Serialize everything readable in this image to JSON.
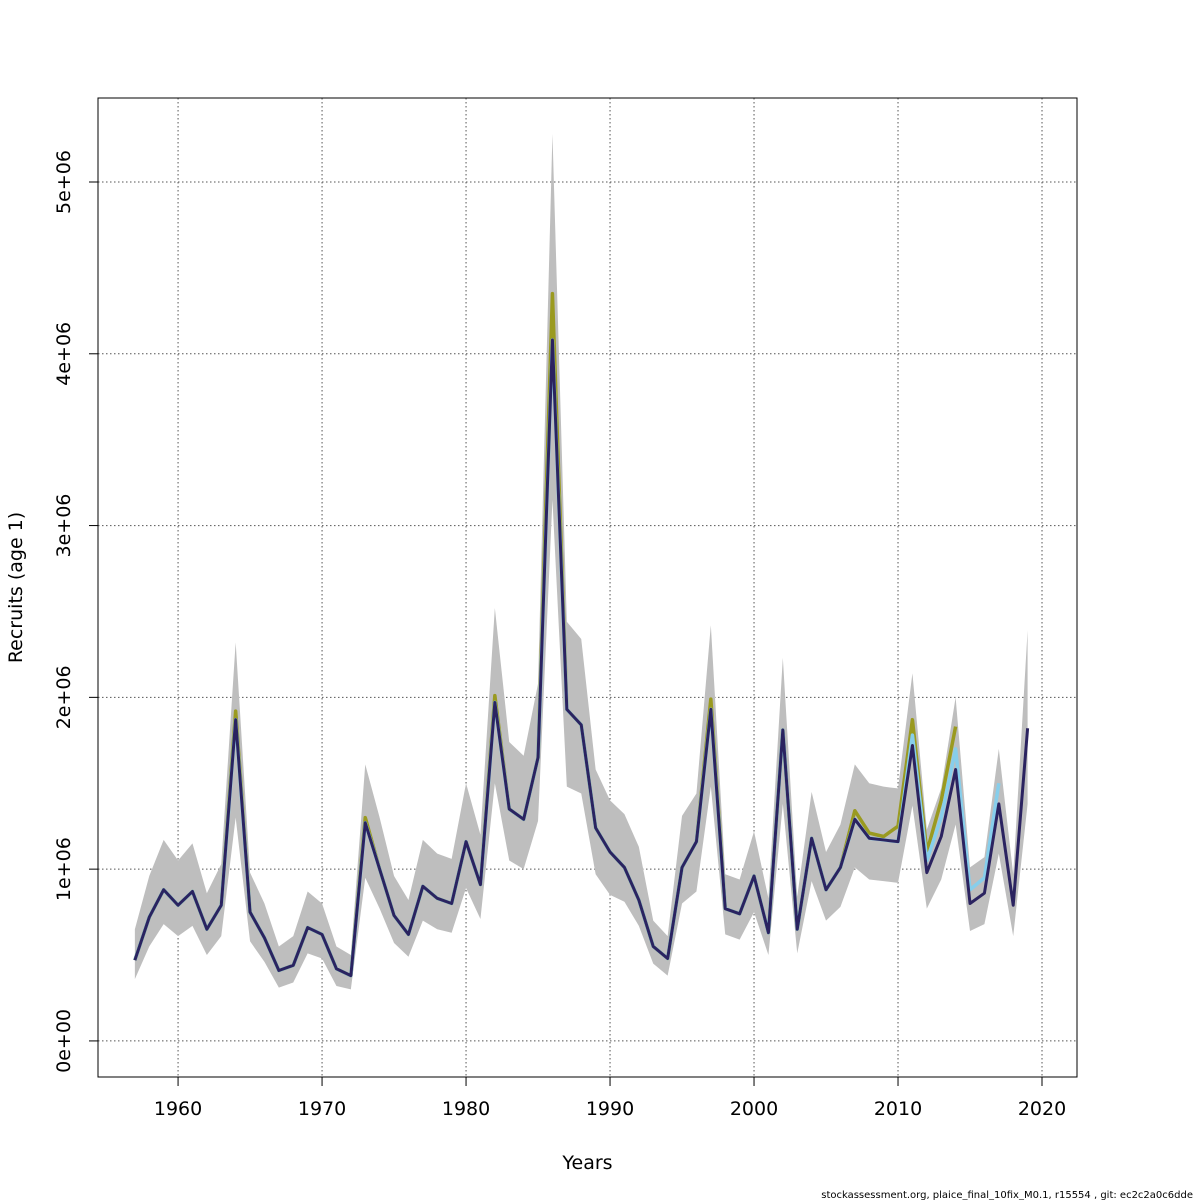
{
  "chart_data": {
    "type": "line",
    "xlabel": "Years",
    "ylabel": "Recruits (age 1)",
    "footer": "stockassessment.org, plaice_final_10fix_M0.1, r15554 , git: ec2c2a0c6dde",
    "x": [
      1957,
      1958,
      1959,
      1960,
      1961,
      1962,
      1963,
      1964,
      1965,
      1966,
      1967,
      1968,
      1969,
      1970,
      1971,
      1972,
      1973,
      1974,
      1975,
      1976,
      1977,
      1978,
      1979,
      1980,
      1981,
      1982,
      1983,
      1984,
      1985,
      1986,
      1987,
      1988,
      1989,
      1990,
      1991,
      1992,
      1993,
      1994,
      1995,
      1996,
      1997,
      1998,
      1999,
      2000,
      2001,
      2002,
      2003,
      2004,
      2005,
      2006,
      2007,
      2008,
      2009,
      2010,
      2011,
      2012,
      2013,
      2014,
      2015,
      2016,
      2017,
      2018,
      2019
    ],
    "band": {
      "color": "#bebebe",
      "lower": [
        360000,
        550000,
        680000,
        610000,
        670000,
        500000,
        610000,
        1300000,
        580000,
        460000,
        310000,
        340000,
        510000,
        480000,
        320000,
        300000,
        950000,
        770000,
        570000,
        490000,
        700000,
        650000,
        630000,
        890000,
        710000,
        1500000,
        1050000,
        1000000,
        1280000,
        3150000,
        1480000,
        1440000,
        970000,
        850000,
        810000,
        670000,
        450000,
        380000,
        800000,
        870000,
        1480000,
        620000,
        590000,
        750000,
        500000,
        1380000,
        510000,
        930000,
        700000,
        780000,
        1010000,
        940000,
        930000,
        920000,
        1370000,
        770000,
        940000,
        1260000,
        640000,
        680000,
        1090000,
        610000,
        1380000
      ],
      "upper": [
        650000,
        960000,
        1170000,
        1050000,
        1150000,
        860000,
        1030000,
        2320000,
        980000,
        800000,
        550000,
        610000,
        870000,
        800000,
        550000,
        500000,
        1610000,
        1300000,
        960000,
        820000,
        1170000,
        1090000,
        1060000,
        1500000,
        1200000,
        2520000,
        1740000,
        1660000,
        2080000,
        5280000,
        2440000,
        2340000,
        1580000,
        1400000,
        1320000,
        1130000,
        700000,
        610000,
        1310000,
        1440000,
        2420000,
        970000,
        940000,
        1220000,
        830000,
        2230000,
        840000,
        1450000,
        1100000,
        1260000,
        1610000,
        1500000,
        1480000,
        1470000,
        2140000,
        1230000,
        1470000,
        2000000,
        1010000,
        1070000,
        1700000,
        970000,
        2390000
      ]
    },
    "series": [
      {
        "color": "#9a9a20",
        "values": [
          470000,
          720000,
          880000,
          790000,
          870000,
          650000,
          790000,
          1920000,
          750000,
          600000,
          410000,
          440000,
          660000,
          620000,
          420000,
          380000,
          1300000,
          1000000,
          730000,
          620000,
          900000,
          830000,
          800000,
          1160000,
          910000,
          2010000,
          1350000,
          1290000,
          1650000,
          4350000,
          1930000,
          1840000,
          1240000,
          1100000,
          1010000,
          820000,
          550000,
          480000,
          1010000,
          1160000,
          1990000,
          770000,
          740000,
          960000,
          630000,
          1810000,
          650000,
          1180000,
          880000,
          1010000,
          1340000,
          1210000,
          1190000,
          1250000,
          1870000,
          1100000,
          1400000,
          1830000,
          null,
          null,
          null,
          null,
          null
        ]
      },
      {
        "color": "#87ceeb",
        "values": [
          470000,
          720000,
          880000,
          790000,
          870000,
          650000,
          790000,
          1870000,
          750000,
          600000,
          410000,
          440000,
          660000,
          620000,
          420000,
          380000,
          1270000,
          1000000,
          730000,
          620000,
          900000,
          830000,
          800000,
          1160000,
          910000,
          1970000,
          1350000,
          1290000,
          1650000,
          4080000,
          1930000,
          1840000,
          1240000,
          1100000,
          1010000,
          820000,
          550000,
          480000,
          1010000,
          1160000,
          1930000,
          770000,
          740000,
          960000,
          630000,
          1810000,
          650000,
          1180000,
          880000,
          1010000,
          1290000,
          1180000,
          1170000,
          1160000,
          1780000,
          1050000,
          1300000,
          1700000,
          880000,
          950000,
          1500000,
          null,
          null
        ]
      },
      {
        "color": "#2b2360",
        "values": [
          470000,
          720000,
          880000,
          790000,
          870000,
          650000,
          790000,
          1870000,
          750000,
          600000,
          410000,
          440000,
          660000,
          620000,
          420000,
          380000,
          1270000,
          1000000,
          730000,
          620000,
          900000,
          830000,
          800000,
          1160000,
          910000,
          1970000,
          1350000,
          1290000,
          1650000,
          4080000,
          1930000,
          1840000,
          1240000,
          1100000,
          1010000,
          820000,
          550000,
          480000,
          1010000,
          1160000,
          1930000,
          770000,
          740000,
          960000,
          630000,
          1810000,
          650000,
          1180000,
          880000,
          1010000,
          1290000,
          1180000,
          1170000,
          1160000,
          1720000,
          980000,
          1190000,
          1580000,
          800000,
          860000,
          1380000,
          790000,
          1820000
        ]
      }
    ],
    "xlim": [
      1954.44,
      2022.43
    ],
    "ylim": [
      -210000,
      5489000
    ],
    "xticks": [
      1960,
      1970,
      1980,
      1990,
      2000,
      2010,
      2020
    ],
    "yticks": [
      {
        "value": 0,
        "label": "0e+00"
      },
      {
        "value": 1000000,
        "label": "1e+06"
      },
      {
        "value": 2000000,
        "label": "2e+06"
      },
      {
        "value": 3000000,
        "label": "3e+06"
      },
      {
        "value": 4000000,
        "label": "4e+06"
      },
      {
        "value": 5000000,
        "label": "5e+06"
      }
    ],
    "grid": true
  }
}
